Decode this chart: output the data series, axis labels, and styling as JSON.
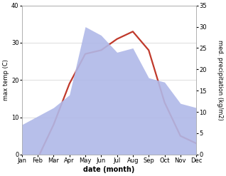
{
  "months": [
    "Jan",
    "Feb",
    "Mar",
    "Apr",
    "May",
    "Jun",
    "Jul",
    "Aug",
    "Sep",
    "Oct",
    "Nov",
    "Dec"
  ],
  "temperature": [
    -1,
    -1,
    8,
    19,
    27,
    28,
    31,
    33,
    28,
    14,
    5,
    3
  ],
  "precipitation": [
    7,
    9,
    11,
    14,
    30,
    28,
    24,
    25,
    18,
    17,
    12,
    11
  ],
  "temp_color": "#c0392b",
  "precip_color": "#b0b8e8",
  "left_ylim": [
    0,
    40
  ],
  "right_ylim": [
    0,
    35
  ],
  "left_yticks": [
    0,
    10,
    20,
    30,
    40
  ],
  "right_yticks": [
    0,
    5,
    10,
    15,
    20,
    25,
    30,
    35
  ],
  "xlabel": "date (month)",
  "ylabel_left": "max temp (C)",
  "ylabel_right": "med. precipitation (kg/m2)",
  "bg_color": "#ffffff",
  "grid_color": "#d0d0d0",
  "temp_lw": 1.6
}
